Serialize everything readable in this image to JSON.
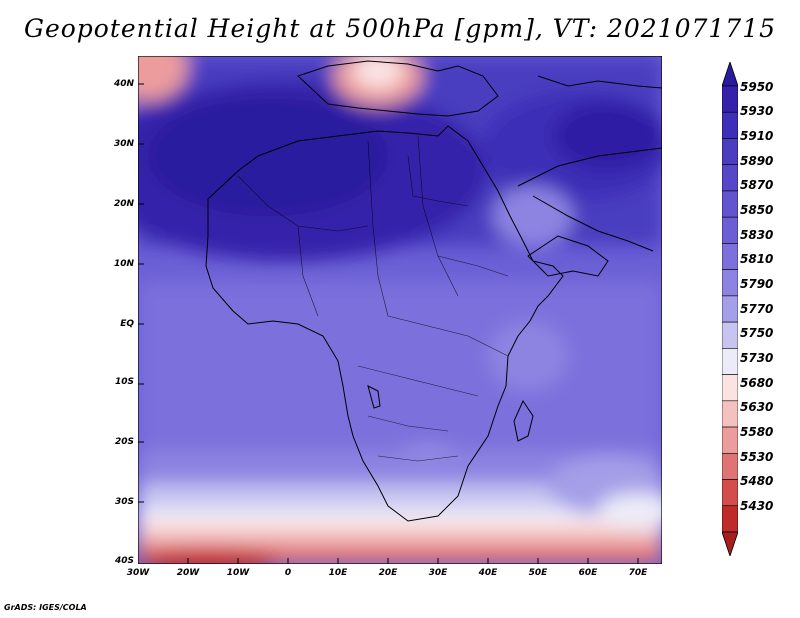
{
  "title": "Geopotential Height at 500hPa [gpm], VT: 2021071715",
  "credit": "GrADS: IGES/COLA",
  "map": {
    "lat_labels": [
      "40N",
      "30N",
      "20N",
      "10N",
      "EQ",
      "10S",
      "20S",
      "30S",
      "40S"
    ],
    "lon_labels": [
      "30W",
      "20W",
      "10W",
      "0",
      "10E",
      "20E",
      "30E",
      "40E",
      "50E",
      "60E",
      "70E"
    ],
    "lon_range": [
      -30,
      75
    ],
    "lat_range": [
      -40,
      45
    ]
  },
  "colorbar": {
    "levels": [
      "5950",
      "5930",
      "5910",
      "5890",
      "5870",
      "5850",
      "5830",
      "5810",
      "5790",
      "5770",
      "5750",
      "5730",
      "5680",
      "5630",
      "5580",
      "5530",
      "5480",
      "5430"
    ],
    "colors": [
      "#2a1a9e",
      "#3520aa",
      "#3d2fb7",
      "#4a3dc0",
      "#5646c8",
      "#6253cf",
      "#6c5fd6",
      "#7c70dc",
      "#8d84e2",
      "#a49fe8",
      "#c7c5f0",
      "#ececf8",
      "#fbe3e3",
      "#f4c1c1",
      "#ec9c9c",
      "#e07474",
      "#d34d4d",
      "#bf2a2a",
      "#a81d1d"
    ]
  },
  "colors": {
    "deep_high": "#2c1a9a",
    "mid_high": "#6b5fd6",
    "neutral": "#f2f2fb",
    "low": "#d34848",
    "coast": "#000000"
  }
}
